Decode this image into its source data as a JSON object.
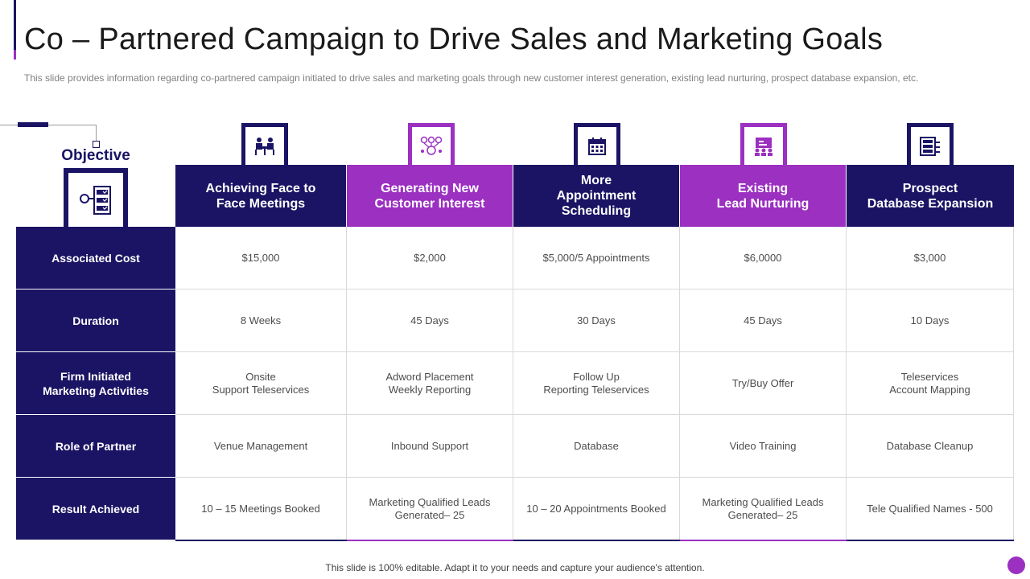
{
  "slide": {
    "title": "Co – Partnered Campaign to Drive Sales and Marketing Goals",
    "subtitle": "This slide provides information regarding co-partnered campaign initiated to drive sales and marketing goals through new customer interest generation, existing lead nurturing, prospect database expansion, etc.",
    "footer": "This slide is 100% editable. Adapt it to your needs and capture your audience's attention."
  },
  "table": {
    "objective_label": "Objective",
    "objective_icon": "checklist-icon",
    "columns": [
      {
        "label": "Achieving Face to\nFace Meetings",
        "icon": "meeting-icon",
        "color": "#1b1464"
      },
      {
        "label": "Generating New\nCustomer Interest",
        "icon": "network-icon",
        "color": "#9b30c1"
      },
      {
        "label": "More\nAppointment\nScheduling",
        "icon": "calendar-icon",
        "color": "#1b1464"
      },
      {
        "label": "Existing\nLead Nurturing",
        "icon": "presentation-icon",
        "color": "#9b30c1"
      },
      {
        "label": "Prospect\nDatabase Expansion",
        "icon": "database-icon",
        "color": "#1b1464"
      }
    ],
    "rows": [
      {
        "label": "Associated Cost",
        "cells": [
          "$15,000",
          "$2,000",
          "$5,000/5 Appointments",
          "$6,0000",
          "$3,000"
        ]
      },
      {
        "label": "Duration",
        "cells": [
          "8 Weeks",
          "45 Days",
          "30 Days",
          "45 Days",
          "10 Days"
        ]
      },
      {
        "label": "Firm Initiated\nMarketing Activities",
        "cells": [
          "Onsite\nSupport Teleservices",
          "Adword Placement\nWeekly Reporting",
          "Follow Up\nReporting Teleservices",
          "Try/Buy Offer",
          "Teleservices\nAccount Mapping"
        ]
      },
      {
        "label": "Role of Partner",
        "cells": [
          "Venue Management",
          "Inbound Support",
          "Database",
          "Video Training",
          "Database Cleanup"
        ]
      },
      {
        "label": "Result Achieved",
        "cells": [
          "10 – 15 Meetings Booked",
          "Marketing Qualified Leads\nGenerated– 25",
          "10 – 20 Appointments  Booked",
          "Marketing Qualified Leads\nGenerated– 25",
          "Tele Qualified Names - 500"
        ]
      }
    ]
  },
  "colors": {
    "navy": "#1b1464",
    "purple": "#9b30c1"
  }
}
